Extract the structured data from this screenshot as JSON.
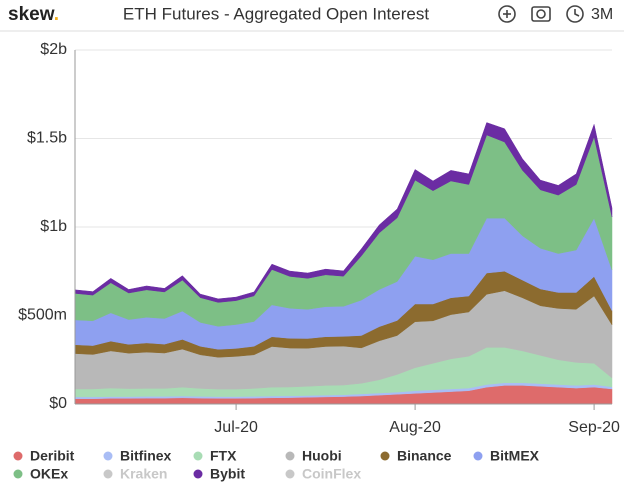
{
  "header": {
    "logo_word": "skew",
    "logo_dot": ".",
    "title": "ETH Futures - Aggregated Open Interest",
    "range": "3M"
  },
  "chart_data": {
    "type": "stacked_area",
    "categories": [
      null,
      null,
      null,
      null,
      null,
      null,
      null,
      null,
      null,
      "Jul-20",
      null,
      null,
      null,
      null,
      null,
      null,
      null,
      null,
      null,
      "Aug-20",
      null,
      null,
      null,
      null,
      null,
      null,
      null,
      null,
      null,
      "Sep-20",
      null
    ],
    "ylim": [
      0,
      2000
    ],
    "yticks": [
      {
        "value": 0,
        "label": "$0"
      },
      {
        "value": 500,
        "label": "$500m"
      },
      {
        "value": 1000,
        "label": "$1b"
      },
      {
        "value": 1500,
        "label": "$1.5b"
      },
      {
        "value": 2000,
        "label": "$2b"
      }
    ],
    "grid": true,
    "legend": "bottom",
    "series": [
      {
        "name": "Deribit",
        "color": "#de6b6b",
        "values": [
          30,
          30,
          32,
          32,
          33,
          33,
          35,
          33,
          32,
          32,
          33,
          35,
          36,
          38,
          40,
          42,
          45,
          50,
          55,
          60,
          65,
          70,
          75,
          95,
          105,
          105,
          100,
          95,
          90,
          95,
          85
        ]
      },
      {
        "name": "Bitfinex",
        "color": "#a9bdf5",
        "values": [
          10,
          10,
          10,
          10,
          10,
          10,
          10,
          10,
          10,
          10,
          10,
          10,
          10,
          10,
          10,
          10,
          12,
          12,
          12,
          15,
          15,
          15,
          15,
          15,
          15,
          15,
          15,
          15,
          15,
          15,
          12
        ]
      },
      {
        "name": "FTX",
        "color": "#a8dcb4",
        "values": [
          45,
          45,
          48,
          45,
          45,
          45,
          50,
          45,
          42,
          42,
          45,
          50,
          50,
          52,
          55,
          55,
          60,
          75,
          100,
          130,
          150,
          170,
          180,
          210,
          200,
          180,
          160,
          140,
          130,
          120,
          50
        ]
      },
      {
        "name": "Huobi",
        "color": "#b8b8b8",
        "values": [
          200,
          195,
          210,
          200,
          205,
          200,
          215,
          190,
          180,
          185,
          190,
          230,
          220,
          215,
          220,
          220,
          200,
          220,
          220,
          260,
          240,
          250,
          250,
          300,
          320,
          300,
          280,
          290,
          300,
          380,
          300
        ]
      },
      {
        "name": "Binance",
        "color": "#8c6b2f",
        "values": [
          50,
          50,
          55,
          50,
          52,
          50,
          55,
          48,
          45,
          45,
          48,
          55,
          55,
          55,
          55,
          55,
          70,
          80,
          85,
          100,
          95,
          95,
          90,
          120,
          110,
          100,
          95,
          90,
          95,
          110,
          80
        ]
      },
      {
        "name": "BitMEX",
        "color": "#8ea0f0",
        "values": [
          140,
          140,
          160,
          140,
          145,
          145,
          160,
          135,
          130,
          135,
          140,
          180,
          170,
          165,
          170,
          170,
          200,
          210,
          220,
          270,
          250,
          250,
          240,
          310,
          300,
          250,
          230,
          220,
          240,
          330,
          230
        ]
      },
      {
        "name": "OKEx",
        "color": "#7dbf86",
        "values": [
          150,
          145,
          170,
          150,
          155,
          150,
          175,
          140,
          135,
          135,
          145,
          200,
          180,
          175,
          180,
          170,
          250,
          320,
          360,
          430,
          390,
          410,
          390,
          470,
          430,
          370,
          330,
          330,
          370,
          460,
          300
        ]
      },
      {
        "name": "Kraken",
        "color": "#c8c8c8",
        "hidden": true,
        "values": [
          null,
          null,
          null,
          null,
          null,
          null,
          null,
          null,
          null,
          null,
          null,
          null,
          null,
          null,
          null,
          null,
          null,
          null,
          null,
          null,
          null,
          null,
          null,
          null,
          null,
          null,
          null,
          null,
          null,
          null,
          null
        ]
      },
      {
        "name": "Bybit",
        "color": "#6b2ca3",
        "values": [
          20,
          20,
          25,
          20,
          22,
          20,
          25,
          20,
          20,
          20,
          22,
          30,
          30,
          30,
          32,
          30,
          40,
          45,
          50,
          60,
          55,
          60,
          60,
          70,
          75,
          65,
          55,
          55,
          60,
          70,
          50
        ]
      },
      {
        "name": "CoinFlex",
        "color": "#c8c8c8",
        "hidden": true,
        "values": [
          null,
          null,
          null,
          null,
          null,
          null,
          null,
          null,
          null,
          null,
          null,
          null,
          null,
          null,
          null,
          null,
          null,
          null,
          null,
          null,
          null,
          null,
          null,
          null,
          null,
          null,
          null,
          null,
          null,
          null,
          null
        ]
      }
    ]
  }
}
